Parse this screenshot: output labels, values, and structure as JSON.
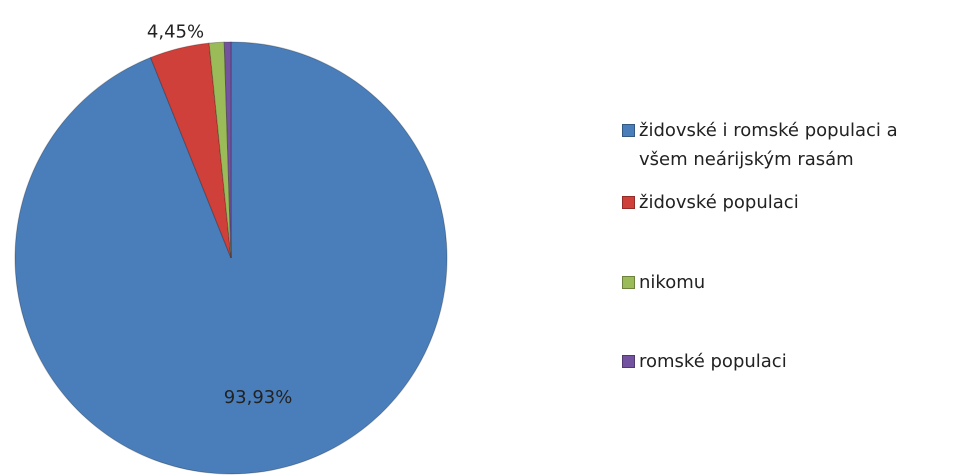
{
  "chart_data": {
    "type": "pie",
    "categories": [
      "židovské i romské populaci a všem neárijským rasám",
      "židovské populaci",
      "nikomu",
      "romské populaci"
    ],
    "values": [
      93.93,
      4.45,
      1.12,
      0.5
    ],
    "value_labels": [
      "93,93%",
      "4,45%",
      null,
      null
    ],
    "colors": [
      "#4a7ebb",
      "#d0403a",
      "#9bbb59",
      "#7353a0"
    ],
    "legend": "right"
  }
}
